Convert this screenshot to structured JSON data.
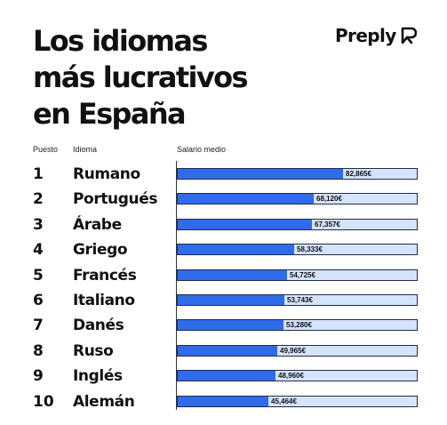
{
  "title_lines": [
    "Los idiomas",
    "más lucrativos",
    "en España"
  ],
  "brand": {
    "name": "Preply",
    "icon": "preply-logo-icon",
    "color": "#111111"
  },
  "column_headers": {
    "rank": "Puesto",
    "language": "Idioma",
    "salary": "Salario medio"
  },
  "colors": {
    "bar_fill": "#2f6bea",
    "bar_track": "#d5e3fb",
    "bar_border": "#1f2d4a"
  },
  "chart_data": {
    "type": "bar",
    "orientation": "horizontal",
    "title": "Los idiomas más lucrativos en España",
    "xlabel": "Salario medio",
    "xlim": [
      0,
      120000
    ],
    "categories": [
      "Rumano",
      "Portugués",
      "Árabe",
      "Griego",
      "Francés",
      "Italiano",
      "Danés",
      "Ruso",
      "Inglés",
      "Alemán"
    ],
    "ranks": [
      "1",
      "2",
      "3",
      "4",
      "5",
      "6",
      "7",
      "8",
      "9",
      "10"
    ],
    "values": [
      82865,
      68120,
      67357,
      58333,
      54725,
      53743,
      53280,
      49965,
      48960,
      45464
    ],
    "value_labels": [
      "82,865€",
      "68,120€",
      "67,357€",
      "58,333€",
      "54,725€",
      "53,743€",
      "53,280€",
      "49,965€",
      "48,960€",
      "45,464€"
    ],
    "grid": false,
    "legend": "none"
  }
}
